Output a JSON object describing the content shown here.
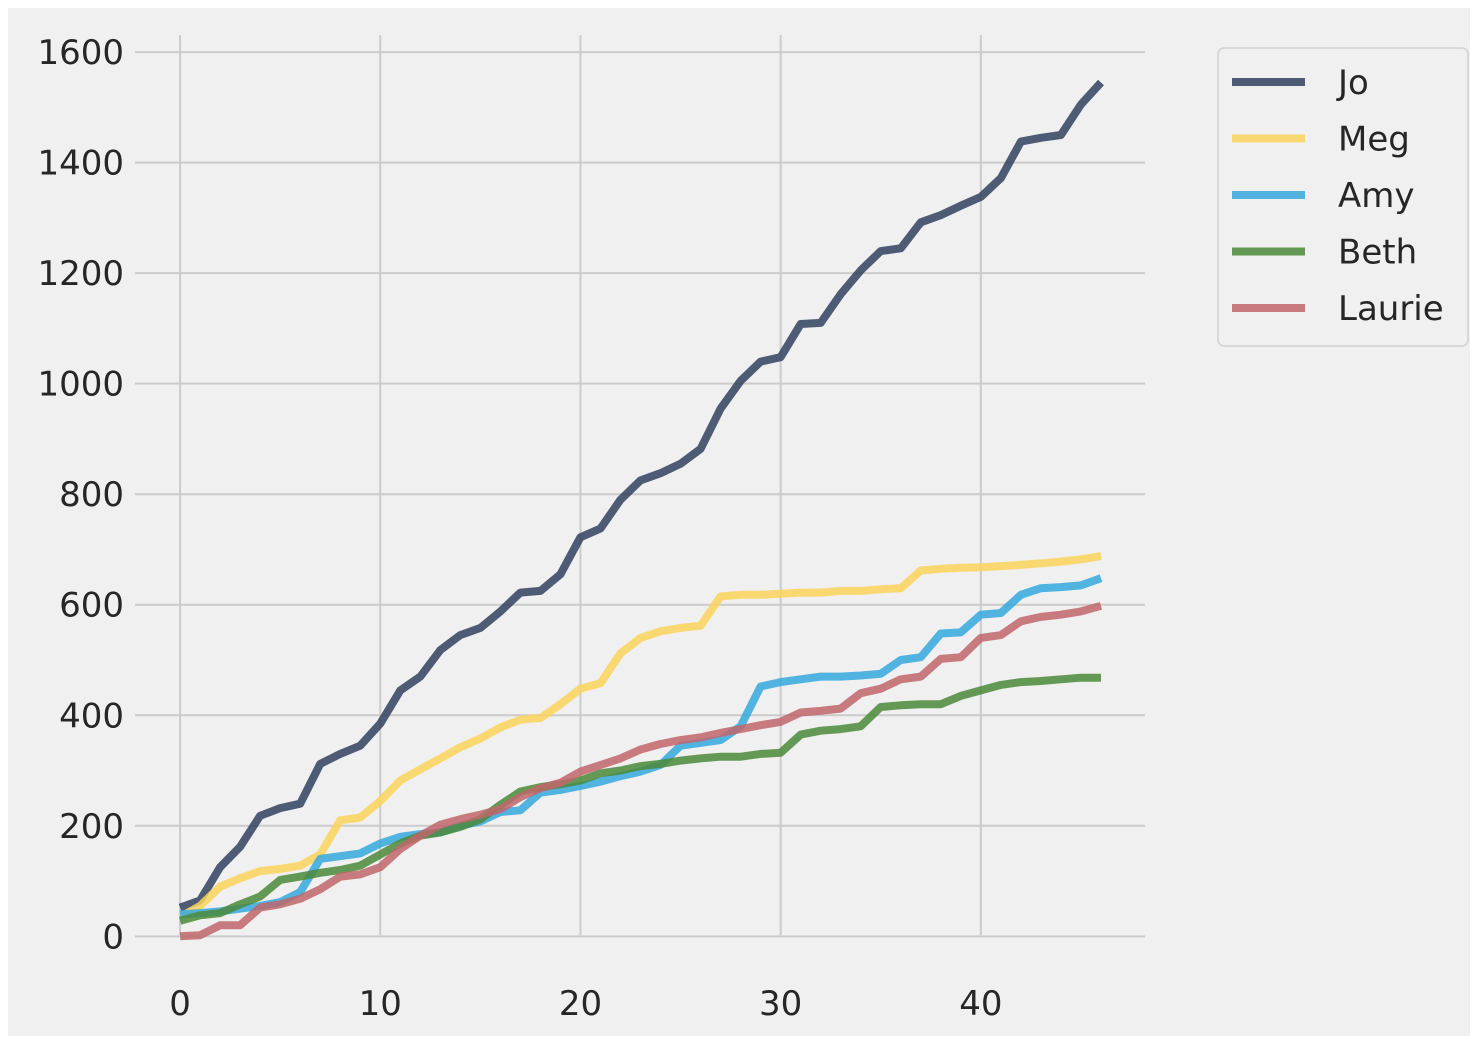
{
  "chart_data": {
    "type": "line",
    "title": "",
    "xlabel": "",
    "ylabel": "",
    "xlim": [
      -3,
      48.2
    ],
    "ylim": [
      -70,
      1640
    ],
    "xticks": [
      0,
      10,
      20,
      30,
      40
    ],
    "yticks": [
      0,
      200,
      400,
      600,
      800,
      1000,
      1200,
      1400,
      1600
    ],
    "xtick_labels": [
      "0",
      "10",
      "20",
      "30",
      "40"
    ],
    "ytick_labels": [
      "0",
      "200",
      "400",
      "600",
      "800",
      "1000",
      "1200",
      "1400",
      "1600"
    ],
    "grid": true,
    "legend_position": "outside-top-right",
    "background_color": "#f0f0f0",
    "grid_color": "#cbcbcb",
    "x": [
      0,
      1,
      2,
      3,
      4,
      5,
      6,
      7,
      8,
      9,
      10,
      11,
      12,
      13,
      14,
      15,
      16,
      17,
      18,
      19,
      20,
      21,
      22,
      23,
      24,
      25,
      26,
      27,
      28,
      29,
      30,
      31,
      32,
      33,
      34,
      35,
      36,
      37,
      38,
      39,
      40,
      41,
      42,
      43,
      44,
      45,
      46
    ],
    "series": [
      {
        "name": "Jo",
        "color": "#30415e",
        "values": [
          52,
          65,
          125,
          162,
          218,
          232,
          240,
          312,
          330,
          345,
          385,
          445,
          470,
          518,
          545,
          558,
          588,
          622,
          625,
          655,
          722,
          738,
          790,
          825,
          838,
          855,
          882,
          955,
          1005,
          1040,
          1048,
          1108,
          1110,
          1162,
          1205,
          1240,
          1245,
          1292,
          1305,
          1322,
          1338,
          1372,
          1438,
          1445,
          1450,
          1505,
          1545
        ]
      },
      {
        "name": "Meg",
        "color": "#fcd35b",
        "values": [
          35,
          55,
          90,
          105,
          118,
          122,
          128,
          148,
          210,
          215,
          245,
          282,
          302,
          322,
          342,
          358,
          378,
          392,
          395,
          420,
          448,
          458,
          512,
          540,
          552,
          558,
          562,
          615,
          618,
          618,
          620,
          622,
          622,
          625,
          625,
          628,
          630,
          662,
          665,
          667,
          668,
          670,
          672,
          675,
          678,
          682,
          688
        ]
      },
      {
        "name": "Amy",
        "color": "#35a8dc",
        "values": [
          40,
          42,
          45,
          50,
          55,
          62,
          80,
          140,
          145,
          150,
          168,
          180,
          185,
          188,
          200,
          208,
          225,
          228,
          260,
          265,
          272,
          280,
          290,
          298,
          310,
          345,
          350,
          355,
          380,
          452,
          460,
          465,
          470,
          470,
          472,
          475,
          500,
          505,
          548,
          550,
          582,
          585,
          618,
          630,
          632,
          635,
          648
        ]
      },
      {
        "name": "Beth",
        "color": "#4a8a3a",
        "values": [
          28,
          38,
          42,
          58,
          72,
          102,
          108,
          115,
          120,
          128,
          148,
          168,
          182,
          188,
          198,
          212,
          238,
          262,
          270,
          275,
          282,
          295,
          300,
          308,
          312,
          318,
          322,
          325,
          325,
          330,
          332,
          365,
          372,
          375,
          380,
          415,
          418,
          420,
          420,
          435,
          445,
          455,
          460,
          462,
          465,
          468,
          468
        ]
      },
      {
        "name": "Laurie",
        "color": "#c0666b",
        "values": [
          0,
          2,
          20,
          20,
          52,
          58,
          68,
          85,
          108,
          112,
          125,
          158,
          182,
          202,
          212,
          220,
          230,
          252,
          268,
          278,
          298,
          310,
          322,
          338,
          348,
          355,
          360,
          368,
          375,
          382,
          388,
          405,
          408,
          412,
          440,
          448,
          465,
          470,
          502,
          505,
          540,
          545,
          570,
          578,
          582,
          588,
          598
        ]
      }
    ]
  }
}
